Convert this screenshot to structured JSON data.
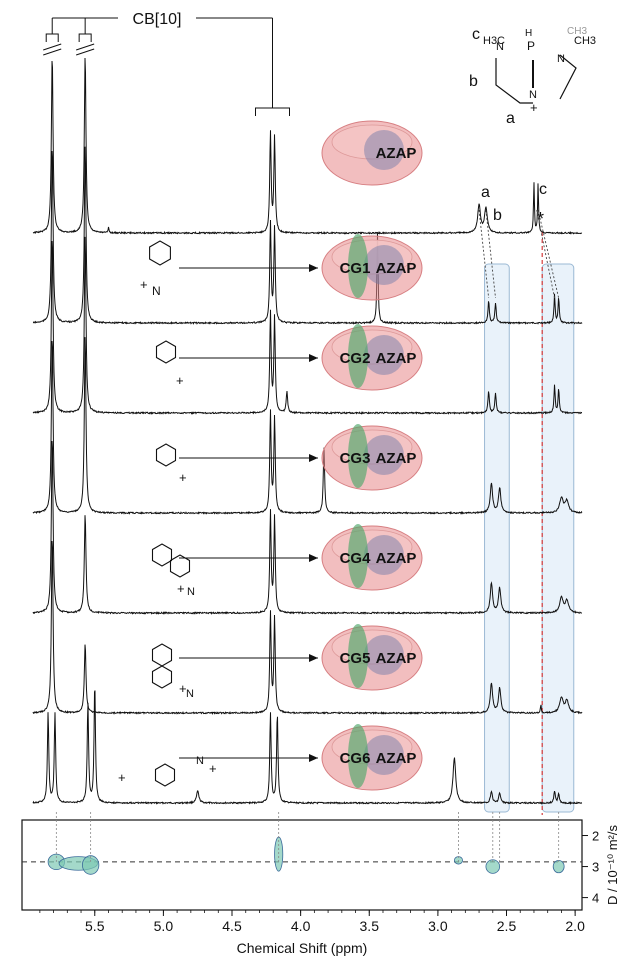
{
  "chart_data": {
    "type": "line",
    "title": "",
    "xlabel": "Chemical Shift (ppm)",
    "ylabel": "D / 10⁻¹⁰ m²/s",
    "xlim": [
      5.95,
      1.95
    ],
    "x_ticks": [
      "5.5",
      "5.0",
      "4.5",
      "4.0",
      "3.5",
      "3.0",
      "2.5",
      "2.0"
    ],
    "x_tick_values": [
      5.5,
      5.0,
      4.5,
      4.0,
      3.5,
      3.0,
      2.5,
      2.0
    ],
    "y_ticks": [
      "2",
      "3",
      "4"
    ],
    "y_tick_values": [
      2,
      3,
      4
    ],
    "ylim_dosy": [
      1.5,
      4.4
    ],
    "cb_label": "CB[10]",
    "peak_labels": [
      "a",
      "b",
      "c",
      "*"
    ],
    "structure_labels": {
      "c": "c",
      "b": "b",
      "a": "a",
      "ch3_left": "H3C",
      "ch3_right": "CH3",
      "ch3_faint": "CH3",
      "n_left": "N",
      "n_right": "N",
      "n_bottom": "N",
      "p": "P",
      "h": "H",
      "plus": "+"
    },
    "traces": [
      {
        "name": "AZAP",
        "label": "AZAP",
        "guest": "",
        "peaks": [
          {
            "x": 5.81,
            "h": 1.8,
            "w": 0.007
          },
          {
            "x": 5.57,
            "h": 1.8,
            "w": 0.007
          },
          {
            "x": 4.22,
            "h": 1.0,
            "w": 0.006
          },
          {
            "x": 4.19,
            "h": 0.95,
            "w": 0.006
          },
          {
            "x": 2.7,
            "h": 0.28,
            "w": 0.012
          },
          {
            "x": 2.65,
            "h": 0.25,
            "w": 0.012
          },
          {
            "x": 2.3,
            "h": 0.5,
            "w": 0.004
          },
          {
            "x": 2.27,
            "h": 0.5,
            "w": 0.004
          },
          {
            "x": 5.4,
            "h": 0.05,
            "w": 0.004
          }
        ]
      },
      {
        "name": "CG1 AZAP",
        "label": "AZAP",
        "guest": "CG1",
        "peaks": [
          {
            "x": 5.81,
            "h": 1.8,
            "w": 0.007
          },
          {
            "x": 5.57,
            "h": 1.8,
            "w": 0.007
          },
          {
            "x": 4.22,
            "h": 1.0,
            "w": 0.006
          },
          {
            "x": 4.19,
            "h": 0.95,
            "w": 0.006
          },
          {
            "x": 3.44,
            "h": 0.9,
            "w": 0.005
          },
          {
            "x": 2.63,
            "h": 0.22,
            "w": 0.006
          },
          {
            "x": 2.58,
            "h": 0.2,
            "w": 0.006
          },
          {
            "x": 2.15,
            "h": 0.28,
            "w": 0.005
          },
          {
            "x": 2.12,
            "h": 0.25,
            "w": 0.005
          }
        ]
      },
      {
        "name": "CG2 AZAP",
        "label": "AZAP",
        "guest": "CG2",
        "peaks": [
          {
            "x": 5.81,
            "h": 1.8,
            "w": 0.007
          },
          {
            "x": 5.57,
            "h": 1.8,
            "w": 0.007
          },
          {
            "x": 4.22,
            "h": 1.0,
            "w": 0.006
          },
          {
            "x": 4.19,
            "h": 0.95,
            "w": 0.006
          },
          {
            "x": 4.1,
            "h": 0.22,
            "w": 0.006
          },
          {
            "x": 2.63,
            "h": 0.22,
            "w": 0.006
          },
          {
            "x": 2.58,
            "h": 0.2,
            "w": 0.006
          },
          {
            "x": 2.15,
            "h": 0.28,
            "w": 0.005
          },
          {
            "x": 2.12,
            "h": 0.25,
            "w": 0.005
          }
        ]
      },
      {
        "name": "CG3 AZAP",
        "label": "AZAP",
        "guest": "CG3",
        "peaks": [
          {
            "x": 5.81,
            "h": 1.8,
            "w": 0.007
          },
          {
            "x": 5.57,
            "h": 1.8,
            "w": 0.007
          },
          {
            "x": 4.22,
            "h": 1.0,
            "w": 0.006
          },
          {
            "x": 4.19,
            "h": 0.95,
            "w": 0.006
          },
          {
            "x": 3.83,
            "h": 0.65,
            "w": 0.006
          },
          {
            "x": 2.61,
            "h": 0.3,
            "w": 0.01
          },
          {
            "x": 2.55,
            "h": 0.25,
            "w": 0.01
          },
          {
            "x": 2.1,
            "h": 0.15,
            "w": 0.015
          },
          {
            "x": 2.06,
            "h": 0.12,
            "w": 0.015
          }
        ]
      },
      {
        "name": "CG4 AZAP",
        "label": "AZAP",
        "guest": "CG4",
        "peaks": [
          {
            "x": 5.81,
            "h": 1.8,
            "w": 0.007
          },
          {
            "x": 5.57,
            "h": 1.0,
            "w": 0.007
          },
          {
            "x": 4.22,
            "h": 1.0,
            "w": 0.006
          },
          {
            "x": 4.19,
            "h": 0.95,
            "w": 0.006
          },
          {
            "x": 2.61,
            "h": 0.3,
            "w": 0.01
          },
          {
            "x": 2.55,
            "h": 0.25,
            "w": 0.01
          },
          {
            "x": 2.1,
            "h": 0.15,
            "w": 0.015
          },
          {
            "x": 2.06,
            "h": 0.12,
            "w": 0.015
          }
        ]
      },
      {
        "name": "CG5 AZAP",
        "label": "AZAP",
        "guest": "CG5",
        "peaks": [
          {
            "x": 5.81,
            "h": 1.8,
            "w": 0.007
          },
          {
            "x": 5.57,
            "h": 0.7,
            "w": 0.007
          },
          {
            "x": 4.22,
            "h": 1.0,
            "w": 0.006
          },
          {
            "x": 4.19,
            "h": 0.95,
            "w": 0.006
          },
          {
            "x": 2.61,
            "h": 0.3,
            "w": 0.01
          },
          {
            "x": 2.55,
            "h": 0.25,
            "w": 0.01
          },
          {
            "x": 2.1,
            "h": 0.15,
            "w": 0.015
          },
          {
            "x": 2.06,
            "h": 0.12,
            "w": 0.015
          },
          {
            "x": 2.25,
            "h": 0.1,
            "w": 0.003
          }
        ]
      },
      {
        "name": "CG6 AZAP",
        "label": "AZAP",
        "guest": "CG6",
        "peaks": [
          {
            "x": 5.84,
            "h": 0.9,
            "w": 0.006
          },
          {
            "x": 5.79,
            "h": 0.9,
            "w": 0.006
          },
          {
            "x": 5.55,
            "h": 1.0,
            "w": 0.006
          },
          {
            "x": 5.5,
            "h": 1.2,
            "w": 0.006
          },
          {
            "x": 4.75,
            "h": 0.12,
            "w": 0.01
          },
          {
            "x": 4.22,
            "h": 0.9,
            "w": 0.006
          },
          {
            "x": 4.17,
            "h": 0.9,
            "w": 0.006
          },
          {
            "x": 2.88,
            "h": 0.45,
            "w": 0.012
          },
          {
            "x": 2.61,
            "h": 0.12,
            "w": 0.008
          },
          {
            "x": 2.55,
            "h": 0.1,
            "w": 0.008
          },
          {
            "x": 2.15,
            "h": 0.12,
            "w": 0.006
          },
          {
            "x": 2.12,
            "h": 0.1,
            "w": 0.006
          }
        ]
      }
    ],
    "dosy_spots": [
      {
        "x": 5.78,
        "D": 2.85,
        "wx": 0.06,
        "wy": 0.25
      },
      {
        "x": 5.62,
        "D": 2.9,
        "wx": 0.14,
        "wy": 0.22
      },
      {
        "x": 5.53,
        "D": 2.95,
        "wx": 0.06,
        "wy": 0.3
      },
      {
        "x": 4.16,
        "D": 2.6,
        "wx": 0.03,
        "wy": 0.55
      },
      {
        "x": 2.85,
        "D": 2.8,
        "wx": 0.03,
        "wy": 0.12
      },
      {
        "x": 2.6,
        "D": 3.0,
        "wx": 0.05,
        "wy": 0.22
      },
      {
        "x": 2.12,
        "D": 3.0,
        "wx": 0.04,
        "wy": 0.2
      }
    ],
    "dosy_dashed_D": 2.85,
    "colors": {
      "trace": "#111111",
      "host_ring": "#e8888a",
      "host_inner": "#f4c4c4",
      "guest": "#4fa86a",
      "azap_ball": "#6a77a8",
      "highlight": "#cfe3f3",
      "red_dash": "#d43a3a",
      "dosy_spot": "#7ec9b4"
    }
  }
}
